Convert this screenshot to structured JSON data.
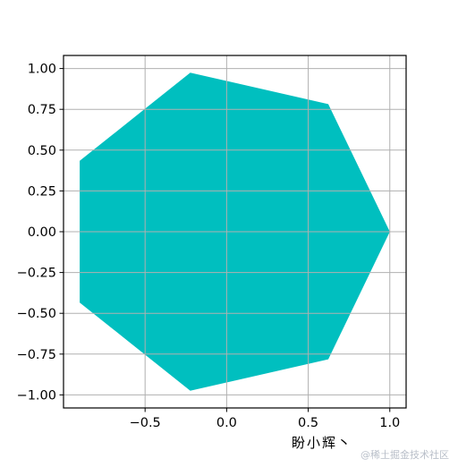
{
  "chart_data": {
    "type": "area",
    "title": "",
    "xlabel": "",
    "ylabel": "",
    "xlim": [
      -1.0,
      1.1
    ],
    "ylim": [
      -1.08,
      1.08
    ],
    "grid": true,
    "fill_color": "#00bfbf",
    "grid_color": "#b0b0b0",
    "x_ticks": [
      -0.5,
      0.0,
      0.5,
      1.0
    ],
    "x_tick_labels": [
      "−0.5",
      "0.0",
      "0.5",
      "1.0"
    ],
    "y_ticks": [
      1.0,
      0.75,
      0.5,
      0.25,
      0.0,
      -0.25,
      -0.5,
      -0.75,
      -1.0
    ],
    "y_tick_labels": [
      "1.00",
      "0.75",
      "0.50",
      "0.25",
      "0.00",
      "−0.25",
      "−0.50",
      "−0.75",
      "−1.00"
    ],
    "series": [
      {
        "x": [
          1.0,
          0.623,
          -0.223,
          -0.901,
          -0.901,
          -0.223,
          0.623
        ],
        "y": [
          0.0,
          0.782,
          0.975,
          0.434,
          -0.434,
          -0.975,
          -0.782
        ]
      }
    ]
  },
  "watermark": {
    "signature": "盼小辉丶",
    "site": "@稀土掘金技术社区"
  }
}
